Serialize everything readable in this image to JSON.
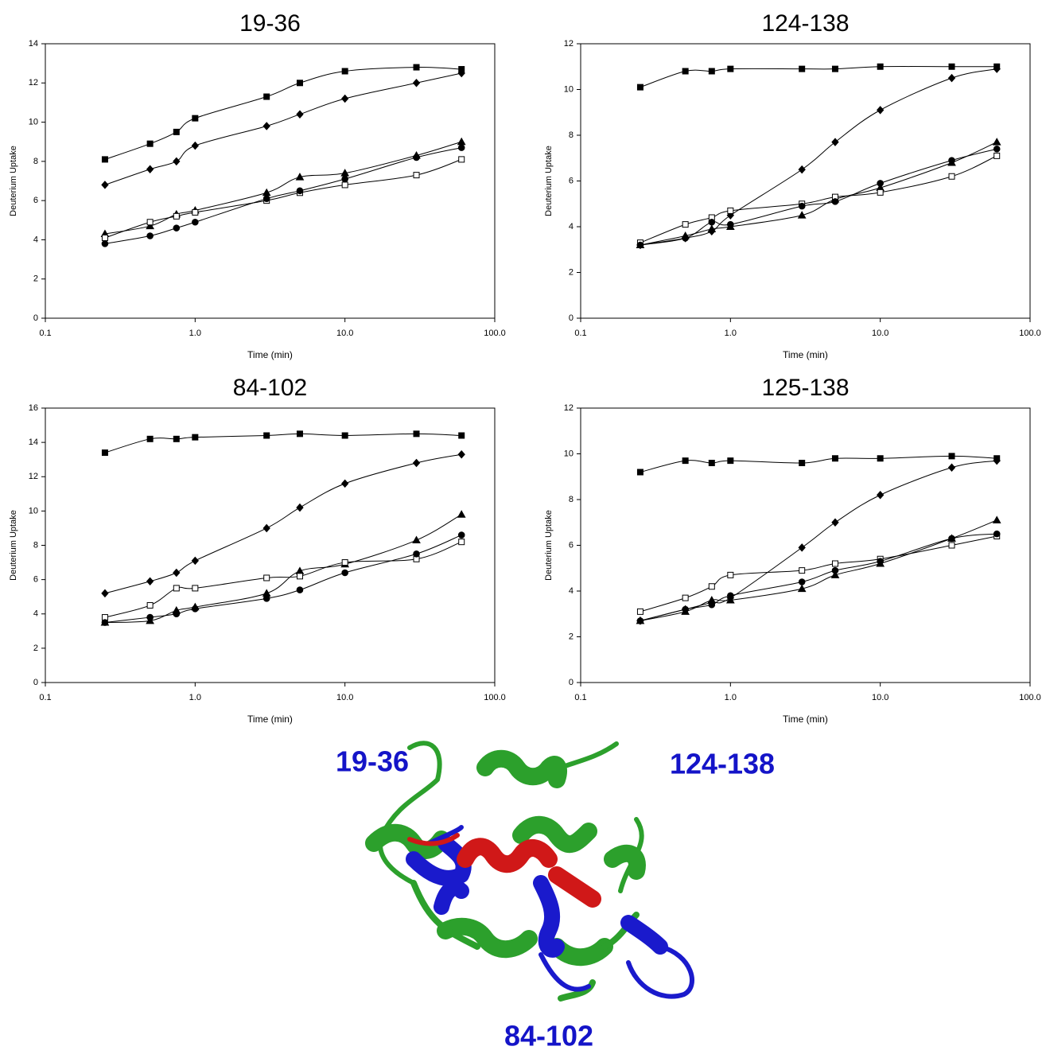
{
  "chart_data": [
    {
      "type": "line",
      "title": "19-36",
      "xlabel": "Time (min)",
      "ylabel": "Deuterium Uptake",
      "xscale": "log",
      "xlim": [
        0.1,
        100
      ],
      "xticks": [
        0.1,
        {
          "value": 1,
          "label": "1.0"
        },
        {
          "value": 10,
          "label": "10.0"
        },
        {
          "value": 100,
          "label": "100.0"
        }
      ],
      "ylim": [
        0,
        14
      ],
      "yticks": [
        0,
        2,
        4,
        6,
        8,
        10,
        12,
        14
      ],
      "x": [
        0.25,
        0.5,
        0.75,
        1,
        3,
        5,
        10,
        30,
        60
      ],
      "series": [
        {
          "color": "#000000",
          "marker": "square",
          "marker_fill": "#000000",
          "values": [
            8.1,
            8.9,
            9.5,
            10.2,
            11.3,
            12.0,
            12.6,
            12.8,
            12.7
          ]
        },
        {
          "color": "#000000",
          "marker": "diamond",
          "marker_fill": "#000000",
          "values": [
            6.8,
            7.6,
            8.0,
            8.8,
            9.8,
            10.4,
            11.2,
            12.0,
            12.5
          ]
        },
        {
          "color": "#000000",
          "marker": "triangle",
          "marker_fill": "#000000",
          "values": [
            4.3,
            4.7,
            5.3,
            5.5,
            6.4,
            7.2,
            7.4,
            8.3,
            9.0
          ]
        },
        {
          "color": "#000000",
          "marker": "square",
          "marker_fill": "#ffffff",
          "values": [
            4.1,
            4.9,
            5.2,
            5.4,
            6.0,
            6.4,
            6.8,
            7.3,
            8.1
          ]
        },
        {
          "color": "#000000",
          "marker": "circle",
          "marker_fill": "#000000",
          "values": [
            3.8,
            4.2,
            4.6,
            4.9,
            6.1,
            6.5,
            7.1,
            8.2,
            8.7
          ]
        }
      ]
    },
    {
      "type": "line",
      "title": "124-138",
      "xlabel": "Time (min)",
      "ylabel": "Deuterium Uptake",
      "xscale": "log",
      "xlim": [
        0.1,
        100
      ],
      "xticks": [
        0.1,
        {
          "value": 1,
          "label": "1.0"
        },
        {
          "value": 10,
          "label": "10.0"
        },
        {
          "value": 100,
          "label": "100.0"
        }
      ],
      "ylim": [
        0,
        12
      ],
      "yticks": [
        0,
        2,
        4,
        6,
        8,
        10,
        12
      ],
      "x": [
        0.25,
        0.5,
        0.75,
        1,
        3,
        5,
        10,
        30,
        60
      ],
      "series": [
        {
          "color": "#000000",
          "marker": "square",
          "marker_fill": "#000000",
          "values": [
            10.1,
            10.8,
            10.8,
            10.9,
            10.9,
            10.9,
            11.0,
            11.0,
            11.0
          ]
        },
        {
          "color": "#000000",
          "marker": "diamond",
          "marker_fill": "#000000",
          "values": [
            3.2,
            3.5,
            3.8,
            4.5,
            6.5,
            7.7,
            9.1,
            10.5,
            10.9
          ]
        },
        {
          "color": "#000000",
          "marker": "triangle",
          "marker_fill": "#000000",
          "values": [
            3.2,
            3.6,
            3.9,
            4.0,
            4.5,
            5.2,
            5.7,
            6.8,
            7.7
          ]
        },
        {
          "color": "#000000",
          "marker": "square",
          "marker_fill": "#ffffff",
          "values": [
            3.3,
            4.1,
            4.4,
            4.7,
            5.0,
            5.3,
            5.5,
            6.2,
            7.1
          ]
        },
        {
          "color": "#000000",
          "marker": "circle",
          "marker_fill": "#000000",
          "values": [
            3.2,
            3.5,
            4.2,
            4.1,
            4.9,
            5.1,
            5.9,
            6.9,
            7.4
          ]
        }
      ]
    },
    {
      "type": "line",
      "title": "84-102",
      "xlabel": "Time (min)",
      "ylabel": "Deuterium Uptake",
      "xscale": "log",
      "xlim": [
        0.1,
        100
      ],
      "xticks": [
        0.1,
        {
          "value": 1,
          "label": "1.0"
        },
        {
          "value": 10,
          "label": "10.0"
        },
        {
          "value": 100,
          "label": "100.0"
        }
      ],
      "ylim": [
        0,
        16
      ],
      "yticks": [
        0,
        2,
        4,
        6,
        8,
        10,
        12,
        14,
        16
      ],
      "x": [
        0.25,
        0.5,
        0.75,
        1,
        3,
        5,
        10,
        30,
        60
      ],
      "series": [
        {
          "color": "#000000",
          "marker": "square",
          "marker_fill": "#000000",
          "values": [
            13.4,
            14.2,
            14.2,
            14.3,
            14.4,
            14.5,
            14.4,
            14.5,
            14.4
          ]
        },
        {
          "color": "#000000",
          "marker": "diamond",
          "marker_fill": "#000000",
          "values": [
            5.2,
            5.9,
            6.4,
            7.1,
            9.0,
            10.2,
            11.6,
            12.8,
            13.3
          ]
        },
        {
          "color": "#000000",
          "marker": "triangle",
          "marker_fill": "#000000",
          "values": [
            3.5,
            3.6,
            4.2,
            4.4,
            5.2,
            6.5,
            6.9,
            8.3,
            9.8
          ]
        },
        {
          "color": "#000000",
          "marker": "square",
          "marker_fill": "#ffffff",
          "values": [
            3.8,
            4.5,
            5.5,
            5.5,
            6.1,
            6.2,
            7.0,
            7.2,
            8.2
          ]
        },
        {
          "color": "#000000",
          "marker": "circle",
          "marker_fill": "#000000",
          "values": [
            3.5,
            3.8,
            4.0,
            4.3,
            4.9,
            5.4,
            6.4,
            7.5,
            8.6
          ]
        }
      ]
    },
    {
      "type": "line",
      "title": "125-138",
      "xlabel": "Time (min)",
      "ylabel": "Deuterium Uptake",
      "xscale": "log",
      "xlim": [
        0.1,
        100
      ],
      "xticks": [
        0.1,
        {
          "value": 1,
          "label": "1.0"
        },
        {
          "value": 10,
          "label": "10.0"
        },
        {
          "value": 100,
          "label": "100.0"
        }
      ],
      "ylim": [
        0,
        12
      ],
      "yticks": [
        0,
        2,
        4,
        6,
        8,
        10,
        12
      ],
      "x": [
        0.25,
        0.5,
        0.75,
        1,
        3,
        5,
        10,
        30,
        60
      ],
      "series": [
        {
          "color": "#000000",
          "marker": "square",
          "marker_fill": "#000000",
          "values": [
            9.2,
            9.7,
            9.6,
            9.7,
            9.6,
            9.8,
            9.8,
            9.9,
            9.8
          ]
        },
        {
          "color": "#000000",
          "marker": "diamond",
          "marker_fill": "#000000",
          "values": [
            2.7,
            3.2,
            3.5,
            3.7,
            5.9,
            7.0,
            8.2,
            9.4,
            9.7
          ]
        },
        {
          "color": "#000000",
          "marker": "triangle",
          "marker_fill": "#000000",
          "values": [
            2.7,
            3.1,
            3.6,
            3.6,
            4.1,
            4.7,
            5.2,
            6.3,
            7.1
          ]
        },
        {
          "color": "#000000",
          "marker": "square",
          "marker_fill": "#ffffff",
          "values": [
            3.1,
            3.7,
            4.2,
            4.7,
            4.9,
            5.2,
            5.4,
            6.0,
            6.4
          ]
        },
        {
          "color": "#000000",
          "marker": "circle",
          "marker_fill": "#000000",
          "values": [
            2.7,
            3.2,
            3.4,
            3.8,
            4.4,
            4.9,
            5.3,
            6.3,
            6.5
          ]
        }
      ]
    }
  ],
  "structure_labels": [
    "19-36",
    "124-138",
    "84-102"
  ]
}
